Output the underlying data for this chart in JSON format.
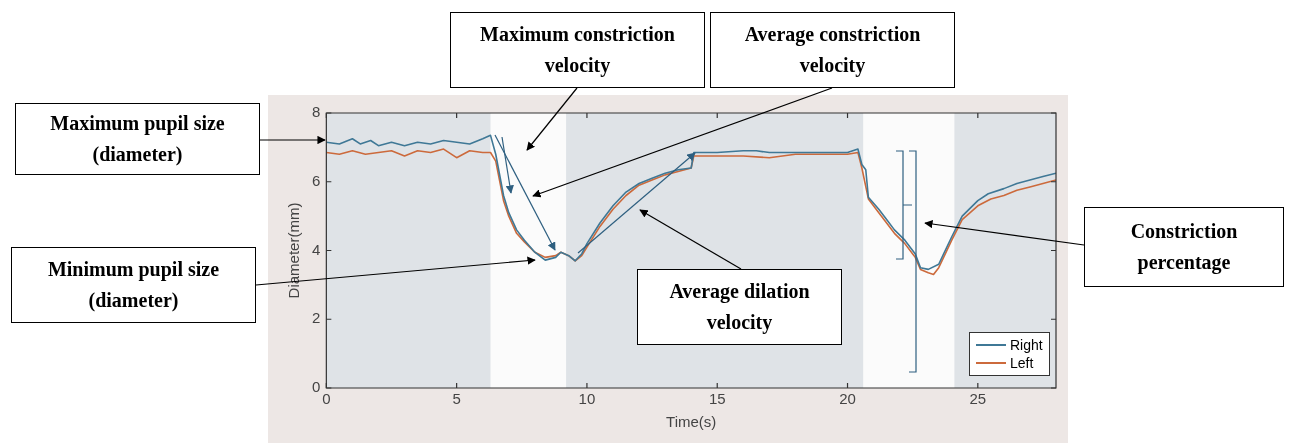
{
  "chart_data": {
    "type": "line",
    "xlabel": "Time(s)",
    "ylabel": "Diameter(mm)",
    "xlim": [
      0,
      28
    ],
    "xticks": [
      0,
      5,
      10,
      15,
      20,
      25
    ],
    "ylim": [
      0,
      8
    ],
    "yticks": [
      0,
      2,
      4,
      6,
      8
    ],
    "grid": false,
    "legend": "bottom right",
    "marker": "none",
    "line_style": "solid",
    "series": [
      {
        "name": "Right",
        "color": "#3f7896",
        "x": [
          0,
          0.5,
          1,
          1.3,
          1.7,
          2,
          2.5,
          3,
          3.5,
          4,
          4.5,
          5,
          5.5,
          6,
          6.3,
          6.5,
          6.8,
          7,
          7.3,
          7.6,
          8,
          8.4,
          8.8,
          9,
          9.3,
          9.55,
          9.8,
          10,
          10.5,
          11,
          11.5,
          12,
          12.5,
          13,
          13.5,
          14,
          14.1,
          15,
          16,
          16.5,
          17,
          18,
          19,
          20,
          20.4,
          20.55,
          20.7,
          20.8,
          21.2,
          21.5,
          21.8,
          22.2,
          22.6,
          22.8,
          23.1,
          23.5,
          24,
          24.4,
          25,
          25.4,
          26,
          26.5,
          27,
          27.5,
          28
        ],
        "values": [
          7.15,
          7.1,
          7.25,
          7.1,
          7.2,
          7.05,
          7.15,
          7.05,
          7.15,
          7.1,
          7.2,
          7.15,
          7.1,
          7.25,
          7.35,
          6.8,
          5.6,
          5.1,
          4.6,
          4.3,
          3.95,
          3.72,
          3.8,
          3.95,
          3.85,
          3.7,
          3.9,
          4.2,
          4.8,
          5.3,
          5.7,
          5.95,
          6.1,
          6.25,
          6.35,
          6.4,
          6.85,
          6.85,
          6.9,
          6.9,
          6.85,
          6.85,
          6.85,
          6.85,
          6.95,
          6.5,
          6.35,
          5.55,
          5.2,
          4.9,
          4.6,
          4.3,
          3.9,
          3.5,
          3.45,
          3.6,
          4.4,
          5,
          5.45,
          5.65,
          5.8,
          5.95,
          6.05,
          6.15,
          6.25
        ]
      },
      {
        "name": "Left",
        "color": "#cc6a3c",
        "x": [
          0,
          0.5,
          1,
          1.5,
          2,
          2.5,
          3,
          3.5,
          4,
          4.5,
          5,
          5.5,
          6,
          6.3,
          6.5,
          6.8,
          7,
          7.3,
          7.6,
          8,
          8.4,
          8.8,
          9,
          9.3,
          9.55,
          9.8,
          10,
          10.5,
          11,
          11.5,
          12,
          12.5,
          13,
          13.5,
          14,
          14.1,
          15,
          16,
          17,
          18,
          19,
          20,
          20.4,
          20.55,
          20.8,
          21.2,
          21.5,
          21.8,
          22.2,
          22.6,
          22.8,
          23.1,
          23.3,
          23.5,
          24,
          24.4,
          25,
          25.5,
          26,
          26.5,
          27,
          27.5,
          28
        ],
        "values": [
          6.85,
          6.8,
          6.9,
          6.8,
          6.85,
          6.9,
          6.75,
          6.9,
          6.85,
          6.95,
          6.7,
          6.9,
          6.85,
          6.85,
          6.6,
          5.45,
          5,
          4.5,
          4.25,
          3.95,
          3.8,
          3.85,
          3.95,
          3.85,
          3.7,
          3.85,
          4.1,
          4.7,
          5.2,
          5.6,
          5.9,
          6.05,
          6.2,
          6.3,
          6.4,
          6.75,
          6.75,
          6.75,
          6.7,
          6.8,
          6.8,
          6.8,
          6.85,
          6.4,
          5.5,
          5.1,
          4.8,
          4.5,
          4.2,
          3.8,
          3.45,
          3.35,
          3.3,
          3.5,
          4.3,
          4.9,
          5.3,
          5.5,
          5.6,
          5.75,
          5.85,
          5.95,
          6.05
        ]
      }
    ],
    "bands": [
      {
        "axis": "x",
        "from": 0,
        "to": 6.3,
        "color": "#dfe3e7"
      },
      {
        "axis": "x",
        "from": 9.2,
        "to": 20.6,
        "color": "#dfe3e7"
      },
      {
        "axis": "x",
        "from": 24.1,
        "to": 28,
        "color": "#dfe3e7"
      }
    ],
    "annotations": [
      "Maximum pupil size (diameter)",
      "Maximum constriction velocity",
      "Average constriction velocity",
      "Minimum pupil size (diameter)",
      "Average dilation velocity",
      "Constriction percentage"
    ]
  }
}
